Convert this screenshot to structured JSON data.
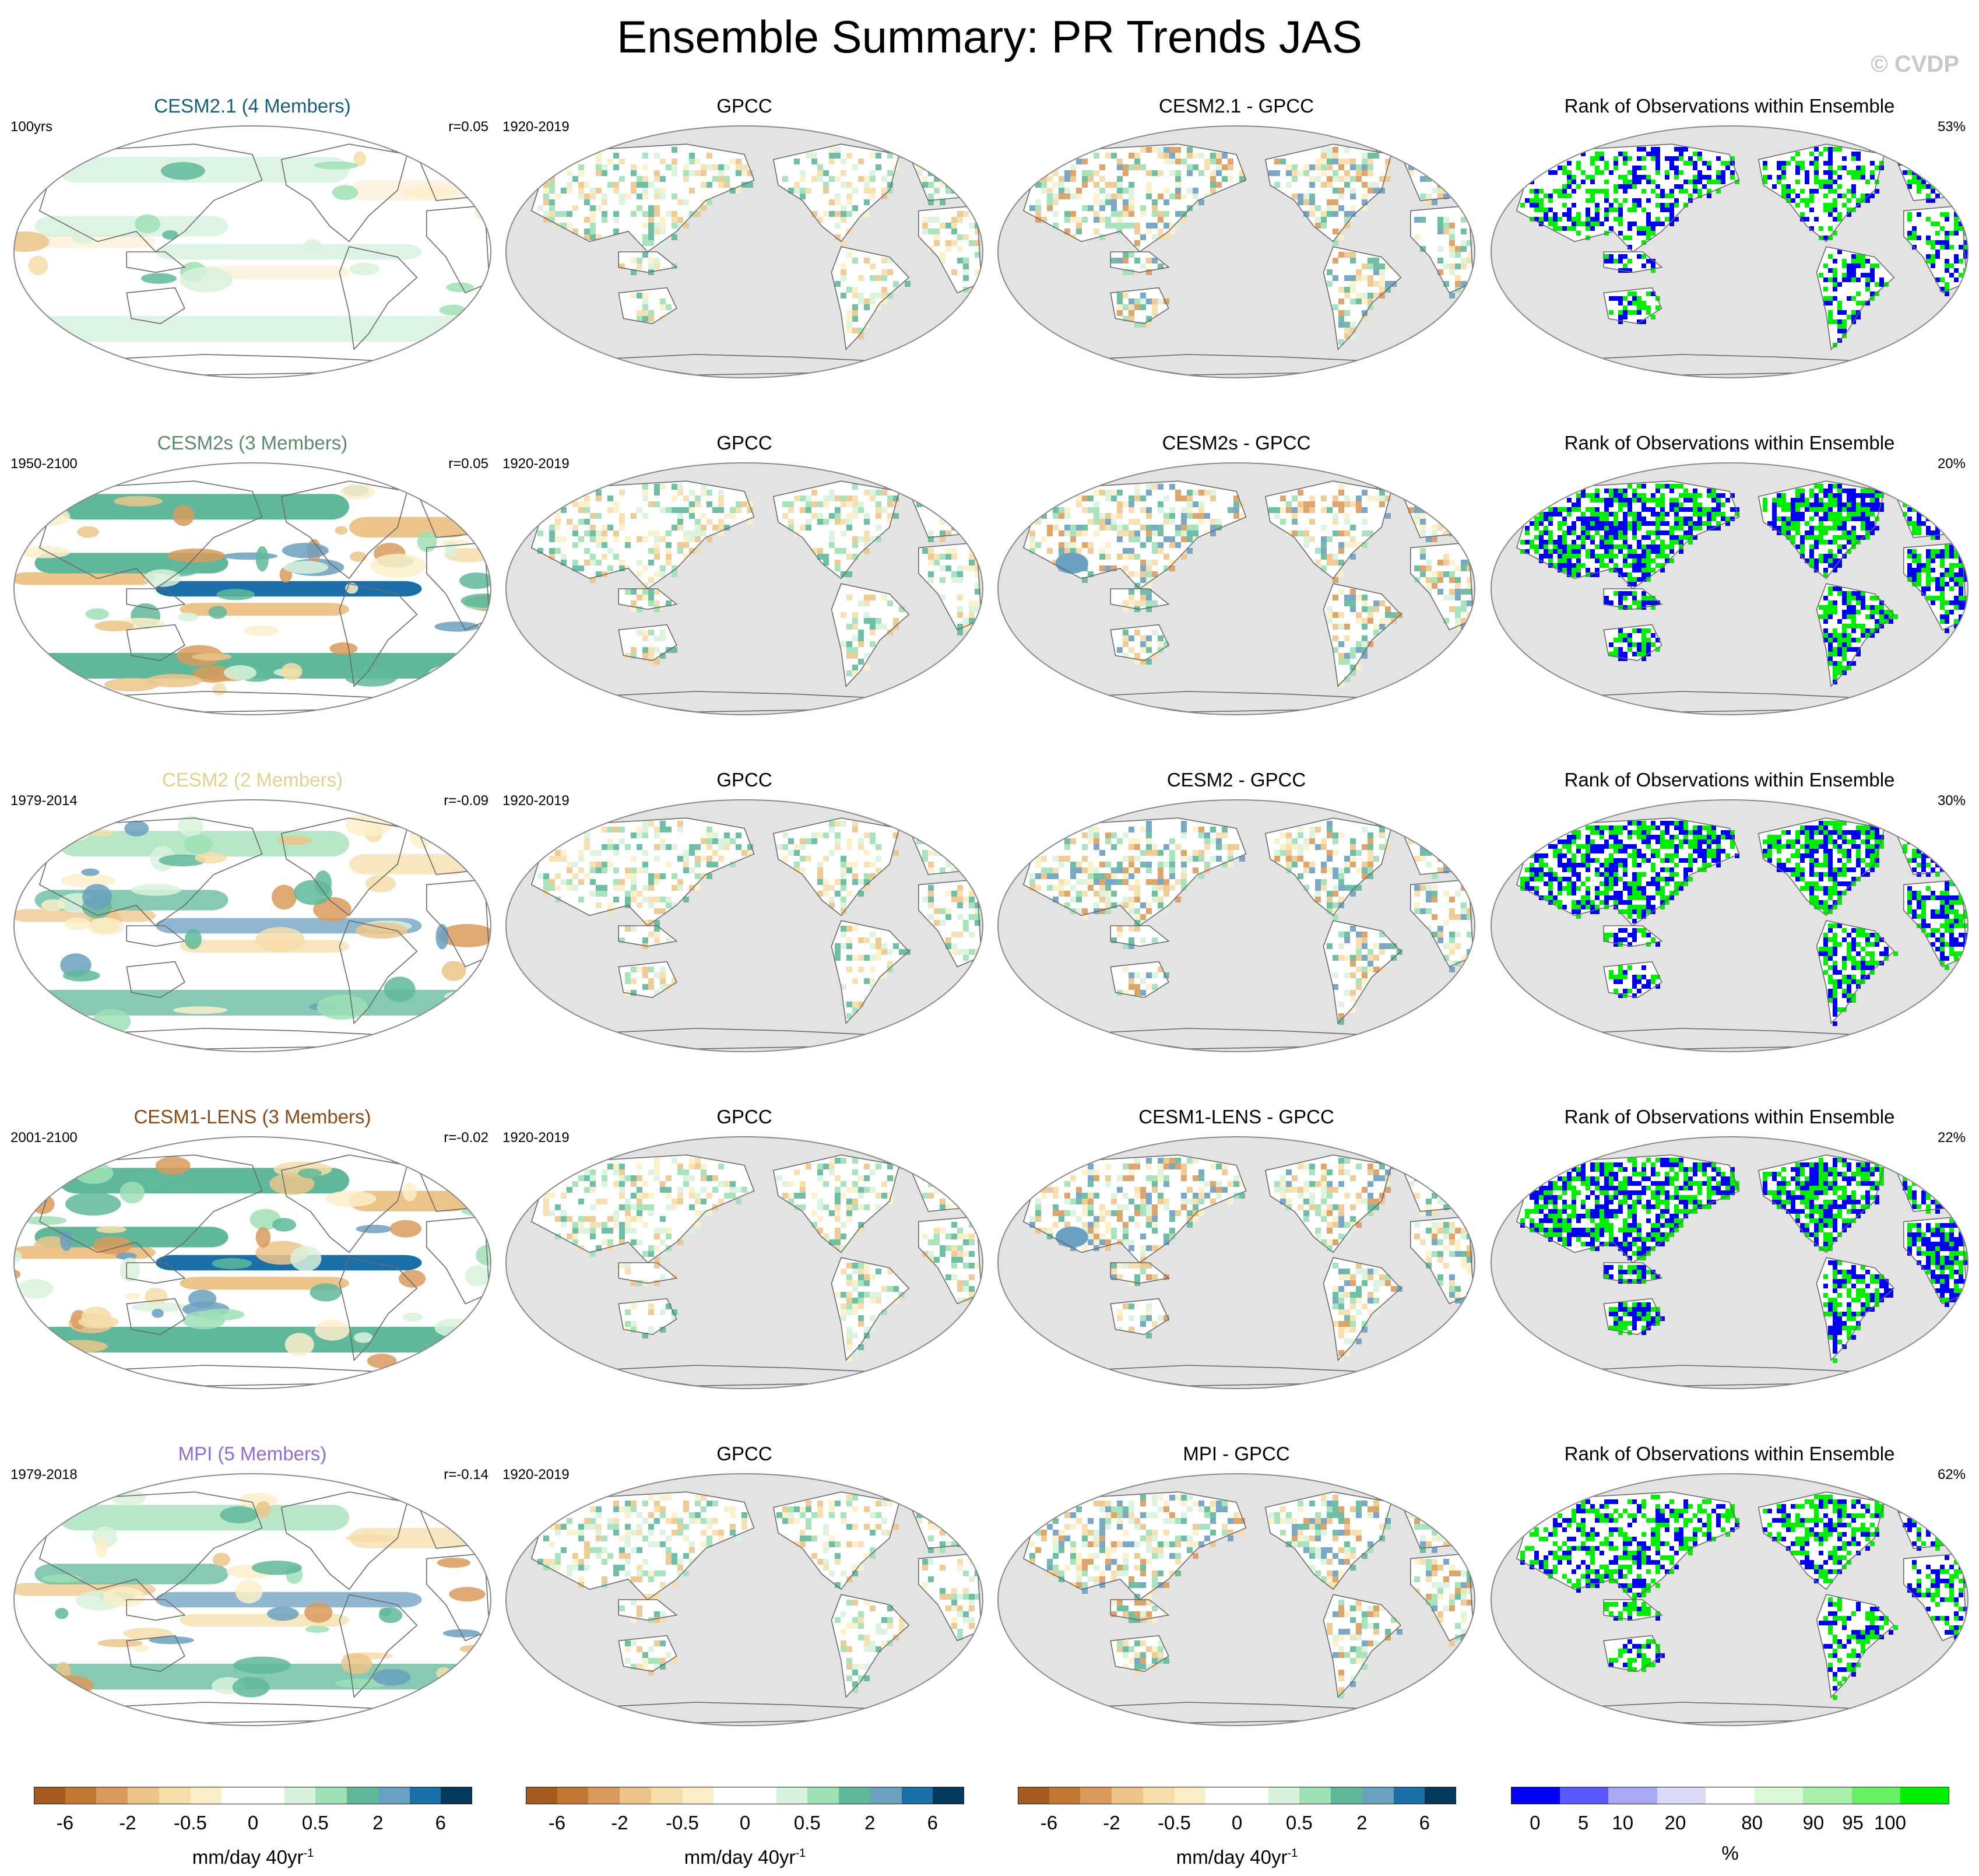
{
  "title": "Ensemble Summary: PR Trends JAS",
  "copyright": "© CVDP",
  "rows": [
    {
      "ensemble": {
        "title": "CESM2.1 (4 Members)",
        "color": "#15607a",
        "left": "100yrs",
        "right": "r=0.05",
        "pattern": "weak"
      },
      "obs": {
        "title": "GPCC",
        "left": "1920-2019"
      },
      "diff": {
        "title": "CESM2.1 - GPCC"
      },
      "rank": {
        "title": "Rank of Observations within Ensemble",
        "right": "53%",
        "blue": 0.35,
        "green": 0.55
      }
    },
    {
      "ensemble": {
        "title": "CESM2s (3 Members)",
        "color": "#5c8a6b",
        "left": "1950-2100",
        "right": "r=0.05",
        "pattern": "strong"
      },
      "obs": {
        "title": "GPCC",
        "left": "1920-2019"
      },
      "diff": {
        "title": "CESM2s - GPCC"
      },
      "rank": {
        "title": "Rank of Observations within Ensemble",
        "right": "20%",
        "blue": 0.55,
        "green": 0.85
      }
    },
    {
      "ensemble": {
        "title": "CESM2 (2 Members)",
        "color": "#e3d08c",
        "left": "1979-2014",
        "right": "r=-0.09",
        "pattern": "medium"
      },
      "obs": {
        "title": "GPCC",
        "left": "1920-2019"
      },
      "diff": {
        "title": "CESM2 - GPCC"
      },
      "rank": {
        "title": "Rank of Observations within Ensemble",
        "right": "30%",
        "blue": 0.5,
        "green": 0.8
      }
    },
    {
      "ensemble": {
        "title": "CESM1-LENS (3 Members)",
        "color": "#8a4a18",
        "left": "2001-2100",
        "right": "r=-0.02",
        "pattern": "strong"
      },
      "obs": {
        "title": "GPCC",
        "left": "1920-2019"
      },
      "diff": {
        "title": "CESM1-LENS - GPCC"
      },
      "rank": {
        "title": "Rank of Observations within Ensemble",
        "right": "22%",
        "blue": 0.6,
        "green": 0.85
      }
    },
    {
      "ensemble": {
        "title": "MPI (5 Members)",
        "color": "#8b6fd6",
        "left": "1979-2018",
        "right": "r=-0.14",
        "pattern": "medium"
      },
      "obs": {
        "title": "GPCC",
        "left": "1920-2019"
      },
      "diff": {
        "title": "MPI - GPCC"
      },
      "rank": {
        "title": "Rank of Observations within Ensemble",
        "right": "62%",
        "blue": 0.3,
        "green": 0.6
      }
    }
  ],
  "chart_data": {
    "type": "heatmap",
    "title": "Ensemble Summary: PR Trends JAS",
    "projection": "Robinson global, Pacific-centered",
    "trend_colorbar": {
      "unit": "mm/day 40yr",
      "unit_exponent": "-1",
      "tick_labels": [
        "-6",
        "-2",
        "-0.5",
        "0",
        "0.5",
        "2",
        "6"
      ],
      "levels": [
        -8,
        -6,
        -4,
        -2,
        -1,
        -0.5,
        -0.2,
        0,
        0.2,
        0.5,
        1,
        2,
        4,
        6
      ],
      "colors": [
        "#a65c1e",
        "#c27833",
        "#d99a5c",
        "#ecc48a",
        "#f6dda9",
        "#fbefc8",
        "#ffffff",
        "#ffffff",
        "#d8f2dc",
        "#9de0b4",
        "#5fb89a",
        "#6aa0c0",
        "#1a6fa8",
        "#063a5c"
      ]
    },
    "rank_colorbar": {
      "unit": "%",
      "tick_labels": [
        "0",
        "5",
        "10",
        "20",
        "80",
        "90",
        "95",
        "100"
      ],
      "colors": [
        "#0000ff",
        "#5a5aff",
        "#a8a8f5",
        "#dadaf8",
        "#ffffff",
        "#d8f8d8",
        "#a8f0a8",
        "#66f066",
        "#00ee00"
      ]
    }
  }
}
